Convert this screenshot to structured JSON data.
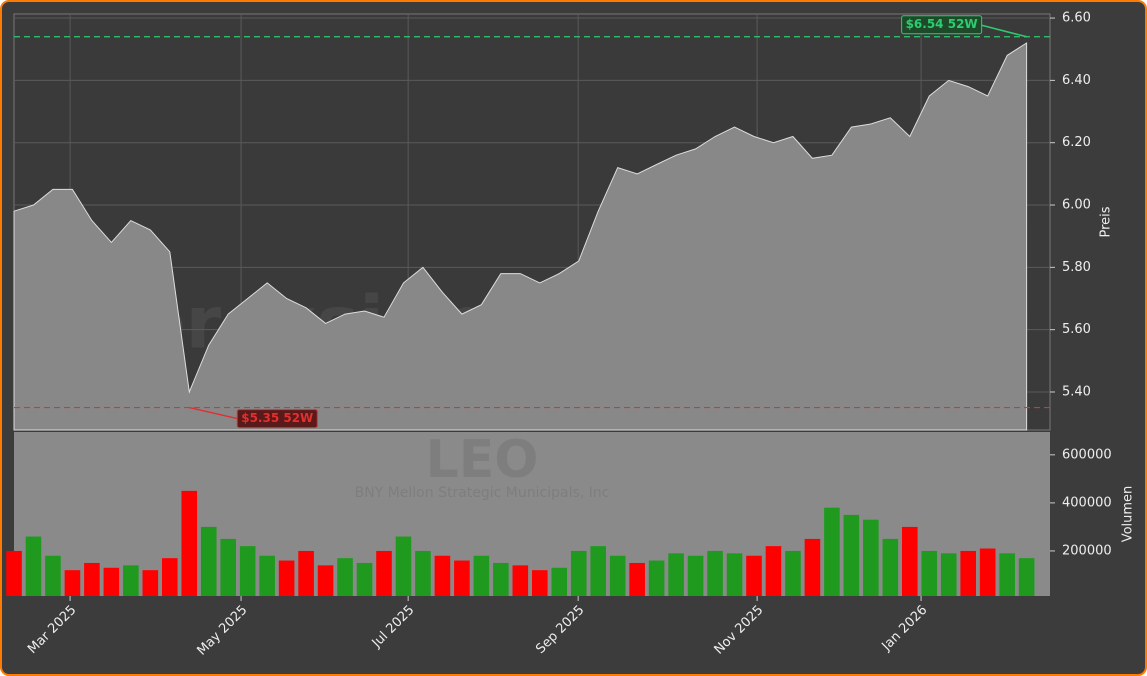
{
  "chart_data": [
    {
      "type": "area",
      "watermark": "forexsignale.trade",
      "ylabel": "Preis",
      "series": [
        {
          "name": "LEO",
          "color": "#888888",
          "values": [
            5.98,
            6.0,
            6.05,
            6.05,
            5.95,
            5.88,
            5.95,
            5.92,
            5.85,
            5.4,
            5.55,
            5.65,
            5.7,
            5.75,
            5.7,
            5.67,
            5.62,
            5.65,
            5.66,
            5.64,
            5.75,
            5.8,
            5.72,
            5.65,
            5.68,
            5.78,
            5.78,
            5.75,
            5.78,
            5.82,
            5.98,
            6.12,
            6.1,
            6.13,
            6.16,
            6.18,
            6.22,
            6.25,
            6.22,
            6.2,
            6.22,
            6.15,
            6.16,
            6.25,
            6.26,
            6.28,
            6.22,
            6.35,
            6.4,
            6.38,
            6.35,
            6.48,
            6.52
          ]
        }
      ],
      "xlim": [
        0,
        53.2
      ],
      "ylim": [
        5.278,
        6.613
      ],
      "yticks": [
        {
          "value": 5.4,
          "label": "5.40"
        },
        {
          "value": 5.6,
          "label": "5.60"
        },
        {
          "value": 5.8,
          "label": "5.80"
        },
        {
          "value": 6.0,
          "label": "6.00"
        },
        {
          "value": 6.2,
          "label": "6.20"
        },
        {
          "value": 6.4,
          "label": "6.40"
        },
        {
          "value": 6.6,
          "label": "6.60"
        }
      ],
      "hlines": [
        {
          "value": 6.54,
          "label": "$6.54 52W",
          "color": "#2ecc71",
          "at": 52
        },
        {
          "value": 5.35,
          "label": "$5.35 52W",
          "color": "#e03030",
          "at": 9
        }
      ],
      "grid": true
    },
    {
      "type": "bar",
      "title": "LEO",
      "subtitle": "BNY Mellon Strategic Municipals, Inc",
      "ylabel": "Volumen",
      "series": [
        {
          "name": "Volumen",
          "values": [
            200000,
            260000,
            180000,
            120000,
            150000,
            130000,
            140000,
            120000,
            170000,
            450000,
            300000,
            250000,
            220000,
            180000,
            160000,
            200000,
            140000,
            170000,
            150000,
            200000,
            260000,
            200000,
            180000,
            160000,
            180000,
            150000,
            140000,
            120000,
            130000,
            200000,
            220000,
            180000,
            150000,
            160000,
            190000,
            180000,
            200000,
            190000,
            180000,
            220000,
            200000,
            250000,
            380000,
            350000,
            330000,
            250000,
            300000,
            200000,
            190000,
            200000,
            210000,
            190000,
            170000
          ],
          "colors": [
            "#ff0000",
            "#1f9a1f",
            "#1f9a1f",
            "#ff0000",
            "#ff0000",
            "#ff0000",
            "#1f9a1f",
            "#ff0000",
            "#ff0000",
            "#ff0000",
            "#1f9a1f",
            "#1f9a1f",
            "#1f9a1f",
            "#1f9a1f",
            "#ff0000",
            "#ff0000",
            "#ff0000",
            "#1f9a1f",
            "#1f9a1f",
            "#ff0000",
            "#1f9a1f",
            "#1f9a1f",
            "#ff0000",
            "#ff0000",
            "#1f9a1f",
            "#1f9a1f",
            "#ff0000",
            "#ff0000",
            "#1f9a1f",
            "#1f9a1f",
            "#1f9a1f",
            "#1f9a1f",
            "#ff0000",
            "#1f9a1f",
            "#1f9a1f",
            "#1f9a1f",
            "#1f9a1f",
            "#1f9a1f",
            "#ff0000",
            "#ff0000",
            "#1f9a1f",
            "#ff0000",
            "#1f9a1f",
            "#1f9a1f",
            "#1f9a1f",
            "#1f9a1f",
            "#ff0000",
            "#1f9a1f",
            "#1f9a1f",
            "#ff0000",
            "#ff0000",
            "#1f9a1f",
            "#1f9a1f"
          ]
        }
      ],
      "xlim": [
        0,
        53.2
      ],
      "ylim": [
        12500,
        695000
      ],
      "yticks": [
        200000,
        400000,
        600000
      ],
      "xticks": [
        {
          "value": 2.88,
          "label": "Mar 2025"
        },
        {
          "value": 11.66,
          "label": "May 2025"
        },
        {
          "value": 20.24,
          "label": "Jul 2025"
        },
        {
          "value": 28.97,
          "label": "Sep 2025"
        },
        {
          "value": 38.16,
          "label": "Nov 2025"
        },
        {
          "value": 46.58,
          "label": "Jan 2026"
        }
      ]
    }
  ]
}
